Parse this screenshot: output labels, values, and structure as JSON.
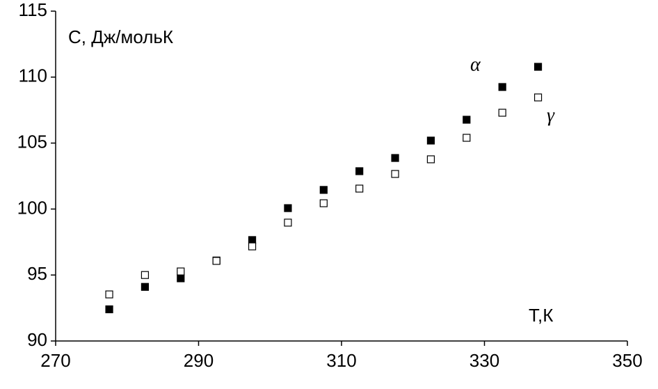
{
  "chart_data": {
    "type": "scatter",
    "y_label": "С, Дж/мольК",
    "x_label": "Т,К",
    "xlim": [
      270,
      350
    ],
    "xticks": [
      270,
      290,
      310,
      330,
      350
    ],
    "ylim": [
      90,
      115
    ],
    "yticks": [
      90,
      95,
      100,
      105,
      110,
      115
    ],
    "grid": false,
    "series": [
      {
        "name": "α",
        "color": "#000000",
        "filled": true,
        "x": [
          277.5,
          282.5,
          287.5,
          292.5,
          297.5,
          302.5,
          307.5,
          312.5,
          317.5,
          322.5,
          327.5,
          332.5,
          337.5
        ],
        "values": [
          92.4,
          94.1,
          94.75,
          96.1,
          97.65,
          100.07,
          101.45,
          102.87,
          103.87,
          105.19,
          106.77,
          109.25,
          110.78
        ]
      },
      {
        "name": "γ",
        "color": "#000000",
        "filled": false,
        "x": [
          277.5,
          282.5,
          287.5,
          292.5,
          297.5,
          302.5,
          307.5,
          312.5,
          317.5,
          322.5,
          327.5,
          332.5,
          337.5
        ],
        "values": [
          93.53,
          95.0,
          95.27,
          96.07,
          97.17,
          98.97,
          100.44,
          101.55,
          102.66,
          103.77,
          105.4,
          107.3,
          108.46
        ]
      }
    ]
  }
}
